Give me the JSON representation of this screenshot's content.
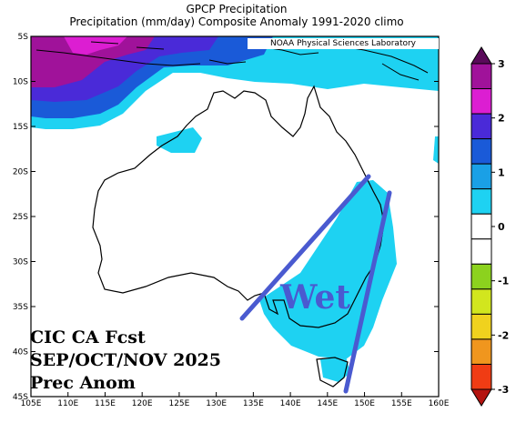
{
  "title_line1": "GPCP Precipitation",
  "title_line2": "Precipitation (mm/day) Composite Anomaly 1991-2020 climo",
  "credit": "NOAA Physical Sciences Laboratory",
  "annotations": {
    "line1": "CIC CA Fcst",
    "line2": "SEP/OCT/NOV 2025",
    "line3": "Prec Anom",
    "wet_label": "Wet"
  },
  "map": {
    "lon_ticks": [
      "105E",
      "110E",
      "115E",
      "120E",
      "125E",
      "130E",
      "135E",
      "140E",
      "145E",
      "150E",
      "155E",
      "160E"
    ],
    "lat_ticks": [
      "5S",
      "10S",
      "15S",
      "20S",
      "25S",
      "30S",
      "35S",
      "40S",
      "45S"
    ],
    "lon_range": [
      105,
      160
    ],
    "lat_range": [
      -5,
      -45
    ]
  },
  "colorbar": {
    "labels": [
      "3",
      "2",
      "1",
      "0",
      "-1",
      "-2",
      "-3"
    ],
    "colors": [
      "#5a0a5a",
      "#a0129a",
      "#dc1ed2",
      "#4a2ad8",
      "#1a5ad8",
      "#1aa0e6",
      "#1ed2f2",
      "#ffffff",
      "#ffffff",
      "#8cd21e",
      "#d2e61e",
      "#f0d21e",
      "#f0961e",
      "#f03c14",
      "#b41410"
    ]
  },
  "colors": {
    "anomaly_light_blue": "#1ed2f2",
    "anomaly_blue": "#1a5ad8",
    "anomaly_purple": "#4a2ad8",
    "anomaly_magenta": "#dc1ed2",
    "annotation_stroke": "#4a5ad0"
  }
}
